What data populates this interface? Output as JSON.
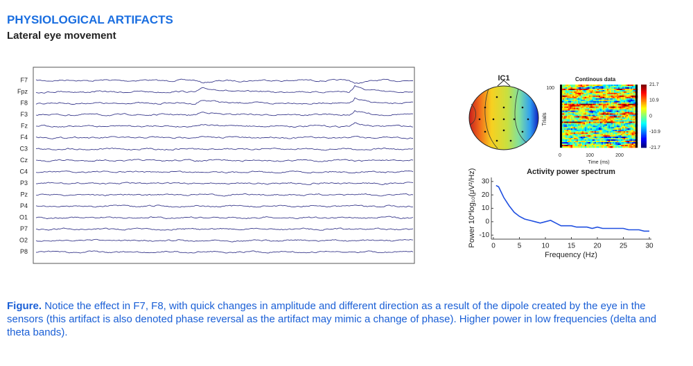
{
  "header": {
    "title": "PHYSIOLOGICAL ARTIFACTS",
    "subtitle": "Lateral eye movement"
  },
  "eeg": {
    "channels": [
      "F7",
      "Fpz",
      "F8",
      "F3",
      "Fz",
      "F4",
      "C3",
      "Cz",
      "C4",
      "P3",
      "Pz",
      "P4",
      "O1",
      "P7",
      "O2",
      "P8"
    ]
  },
  "figure": {
    "ic_title": "IC1",
    "heatmap": {
      "title": "Continous data",
      "y_label": "Trials",
      "y_ticks": [
        100
      ],
      "x_label": "Time (ms)",
      "x_ticks": [
        0,
        100,
        200
      ],
      "colorbar_ticks": [
        21.7,
        10.9,
        0,
        -10.9,
        -21.7
      ]
    }
  },
  "chart_data": {
    "type": "line",
    "title": "Activity power spectrum",
    "x_label": "Frequency (Hz)",
    "y_label": "Power 10*log₁₀(μV²/Hz)",
    "x": [
      0.5,
      1,
      2,
      3,
      4,
      5,
      6,
      7,
      8,
      9,
      10,
      11,
      12,
      13,
      14,
      15,
      16,
      17,
      18,
      19,
      20,
      21,
      22,
      23,
      24,
      25,
      26,
      27,
      28,
      29,
      30
    ],
    "values": [
      27,
      26,
      18,
      12,
      7,
      4,
      2,
      1,
      0,
      -1,
      0,
      1,
      -1,
      -3,
      -3,
      -3,
      -4,
      -4,
      -4,
      -5,
      -4,
      -5,
      -5,
      -5,
      -5,
      -5,
      -6,
      -6,
      -6,
      -7,
      -7
    ],
    "color": "#1f4fe0",
    "xlim": [
      0,
      30
    ],
    "ylim": [
      -13,
      33
    ],
    "xticks": [
      0,
      5,
      10,
      15,
      20,
      25,
      30
    ],
    "yticks": [
      -10,
      0,
      10,
      20,
      30
    ]
  },
  "caption": {
    "label": "Figure.",
    "text": "Notice the effect in F7, F8, with quick changes in amplitude and different direction as a result of the dipole created by the eye in the sensors (this artifact is also denoted phase reversal as the artifact may mimic a change of phase). Higher power in low frequencies (delta and theta bands)."
  }
}
